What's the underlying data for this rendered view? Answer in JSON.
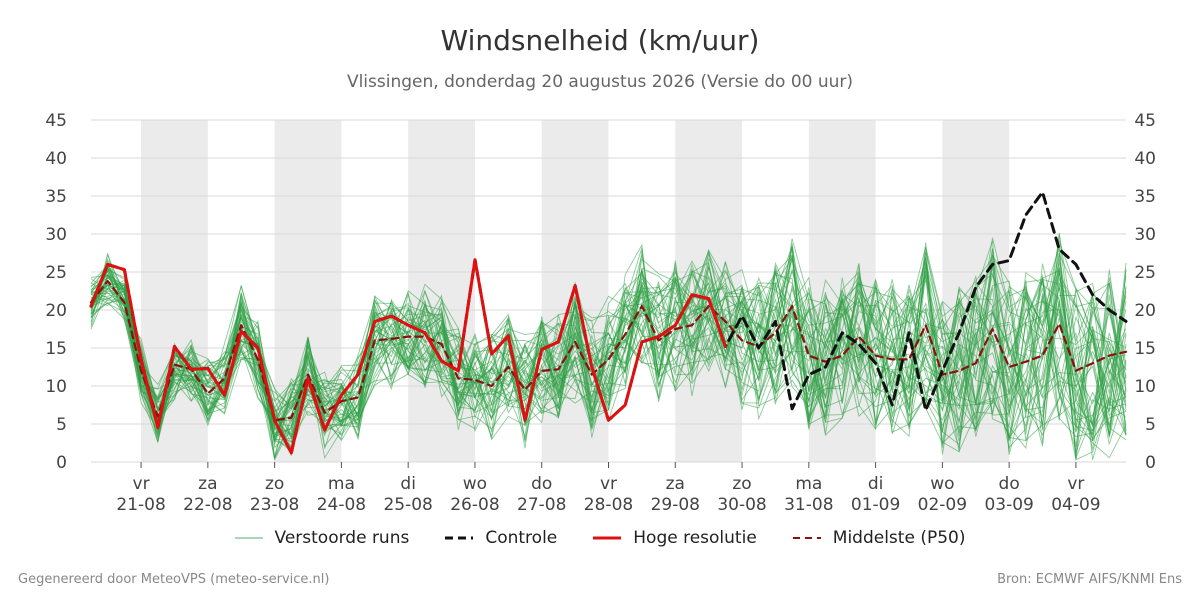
{
  "title": "Windsnelheid (km/uur)",
  "subtitle": "Vlissingen, donderdag 20 augustus 2026 (Versie do 00 uur)",
  "footer": {
    "left": "Gegenereerd door MeteoVPS (meteo-service.nl)",
    "right": "Bron: ECMWF AIFS/KNMI Ens"
  },
  "legend": {
    "ensemble": "Verstoorde runs",
    "control": "Controle",
    "hires": "Hoge resolutie",
    "median": "Middelste (P50)"
  },
  "colors": {
    "ensemble": "#2e9e44",
    "control": "#111111",
    "hires": "#e01010",
    "median": "#8b1010",
    "weekend_band": "#ebebeb",
    "grid": "#d9d9d9"
  },
  "chart_data": {
    "type": "line",
    "title": "Windsnelheid (km/uur)",
    "ylim": [
      0,
      45
    ],
    "yticks": [
      0,
      5,
      10,
      15,
      20,
      25,
      30,
      35,
      40,
      45
    ],
    "x_unit": "time step of 6 hours, starting 20-08-2026 06:00",
    "xlim": [
      0,
      62
    ],
    "day_ticks": [
      {
        "day": "vr",
        "date": "21-08",
        "x": 3
      },
      {
        "day": "za",
        "date": "22-08",
        "x": 7
      },
      {
        "day": "zo",
        "date": "23-08",
        "x": 11
      },
      {
        "day": "ma",
        "date": "24-08",
        "x": 15
      },
      {
        "day": "di",
        "date": "25-08",
        "x": 19
      },
      {
        "day": "wo",
        "date": "26-08",
        "x": 23
      },
      {
        "day": "do",
        "date": "27-08",
        "x": 27
      },
      {
        "day": "vr",
        "date": "28-08",
        "x": 31
      },
      {
        "day": "za",
        "date": "29-08",
        "x": 35
      },
      {
        "day": "zo",
        "date": "30-08",
        "x": 39
      },
      {
        "day": "ma",
        "date": "31-08",
        "x": 43
      },
      {
        "day": "di",
        "date": "01-09",
        "x": 47
      },
      {
        "day": "wo",
        "date": "02-09",
        "x": 51
      },
      {
        "day": "do",
        "date": "03-09",
        "x": 55
      },
      {
        "day": "vr",
        "date": "04-09",
        "x": 59
      }
    ],
    "shaded_bands": [
      [
        3,
        7
      ],
      [
        11,
        15
      ],
      [
        19,
        23
      ],
      [
        27,
        31
      ],
      [
        35,
        39
      ],
      [
        43,
        47
      ],
      [
        51,
        55
      ]
    ],
    "series": [
      {
        "name": "Hoge resolutie",
        "style": "solid",
        "x": [
          0,
          1,
          2,
          3,
          4,
          5,
          6,
          7,
          8,
          9,
          10,
          11,
          12,
          13,
          14,
          15,
          16,
          17,
          18,
          19,
          20,
          21,
          22,
          23,
          24,
          25,
          26,
          27,
          28,
          29,
          30,
          31,
          32,
          33,
          34,
          35,
          36,
          37,
          38
        ],
        "y": [
          20.5,
          26,
          25.3,
          13.5,
          4.5,
          15.2,
          12.2,
          12.3,
          8.8,
          17.2,
          15,
          5.5,
          1.2,
          11,
          4.2,
          8.8,
          11.5,
          18.5,
          19.2,
          18,
          17,
          13.3,
          12,
          26.6,
          14.2,
          16.6,
          5.5,
          14.8,
          15.8,
          23.2,
          12.5,
          5.5,
          7.5,
          15.8,
          16.5,
          18,
          22,
          21.5,
          15.2
        ]
      },
      {
        "name": "Controle",
        "style": "dashed",
        "x": [
          0,
          1,
          2,
          3,
          4,
          5,
          6,
          7,
          8,
          9,
          10,
          11,
          12,
          13,
          14,
          15,
          16,
          17,
          18,
          19,
          20,
          21,
          22,
          23,
          24,
          25,
          26,
          27,
          28,
          29,
          30,
          31,
          32,
          33,
          34,
          35,
          36,
          37,
          38,
          39,
          40,
          41,
          42,
          43,
          44,
          45,
          46,
          47,
          48,
          49,
          50,
          51,
          52,
          53,
          54,
          55,
          56,
          57,
          58,
          59,
          60,
          61,
          62
        ],
        "y": [
          20.5,
          26,
          25.3,
          13.5,
          4.5,
          15.2,
          12.2,
          12.3,
          8.8,
          17.2,
          15,
          5.5,
          1.2,
          11,
          4.2,
          8.8,
          11.5,
          18.5,
          19.2,
          18,
          17,
          13.3,
          12,
          26.6,
          14.2,
          16.6,
          5.5,
          14.8,
          15.8,
          23.2,
          12.5,
          5.5,
          7.5,
          15.8,
          16.5,
          18,
          22,
          21.5,
          15.2,
          19.2,
          15,
          18.5,
          7,
          11.5,
          12.5,
          17,
          15.5,
          13,
          7.5,
          17,
          6.8,
          12,
          17,
          23,
          26,
          26.5,
          32.5,
          35.5,
          28,
          26,
          22,
          20,
          18.5
        ]
      },
      {
        "name": "Middelste (P50)",
        "style": "dashed",
        "x": [
          0,
          1,
          2,
          3,
          4,
          5,
          6,
          7,
          8,
          9,
          10,
          11,
          12,
          13,
          14,
          15,
          16,
          17,
          18,
          19,
          20,
          21,
          22,
          23,
          24,
          25,
          26,
          27,
          28,
          29,
          30,
          31,
          32,
          33,
          34,
          35,
          36,
          37,
          38,
          39,
          40,
          41,
          42,
          43,
          44,
          45,
          46,
          47,
          48,
          49,
          50,
          51,
          52,
          53,
          54,
          55,
          56,
          57,
          58,
          59,
          60,
          61,
          62
        ],
        "y": [
          21,
          23.8,
          21,
          12,
          6,
          12.8,
          12.2,
          9,
          11,
          18,
          13.5,
          5.5,
          5.8,
          11.5,
          6.5,
          8,
          8.5,
          16,
          16.2,
          16.5,
          16.5,
          15.5,
          11,
          10.8,
          10,
          12.5,
          9.5,
          12,
          12.2,
          15.8,
          11.5,
          13.5,
          16.8,
          20.5,
          16,
          17.5,
          18,
          20.5,
          18.5,
          16,
          15.2,
          17,
          20.5,
          14,
          13.2,
          14,
          16.5,
          14,
          13.5,
          13.5,
          18,
          11.5,
          12,
          13,
          17.5,
          12.5,
          13.2,
          14,
          18.2,
          12,
          13,
          14,
          14.5
        ]
      }
    ]
  }
}
